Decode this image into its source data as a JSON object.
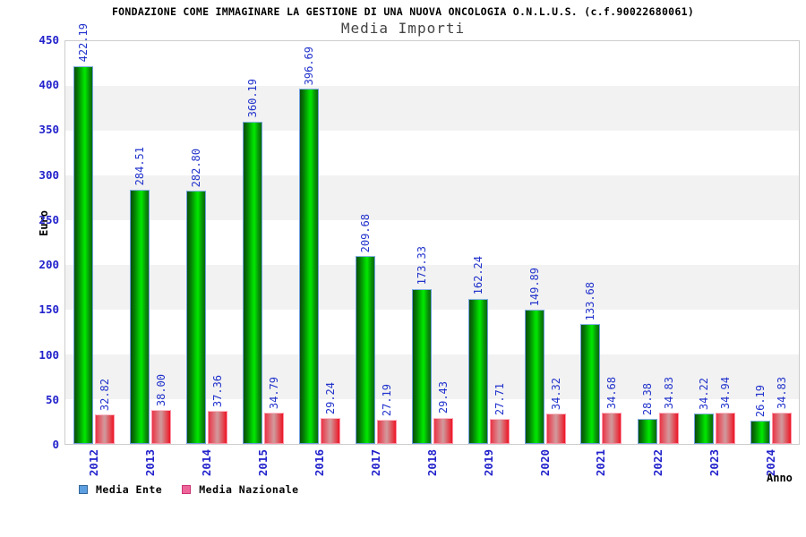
{
  "title": "FONDAZIONE COME IMMAGINARE LA GESTIONE DI UNA NUOVA ONCOLOGIA O.N.L.U.S. (c.f.90022680061)",
  "subtitle": "Media Importi",
  "axes": {
    "y_label": "Euro",
    "x_label": "Anno",
    "y_ticks": [
      0,
      50,
      100,
      150,
      200,
      250,
      300,
      350,
      400,
      450
    ],
    "y_max": 450
  },
  "legend": [
    {
      "label": "Media Ente",
      "swatch_fill": "#5c9fe0",
      "swatch_border": "#336699"
    },
    {
      "label": "Media Nazionale",
      "swatch_fill": "#ee6699",
      "swatch_border": "#cc3377"
    }
  ],
  "colors": {
    "tick_label": "#2222cc",
    "value_label": "#2233cc",
    "band": "#f2f2f2",
    "plot_border": "#cccccc",
    "bar_green_mid": "#00e800",
    "bar_red_mid": "#d98c92",
    "title_text": "#000000",
    "subtitle_text": "#444444"
  },
  "chart_data": {
    "type": "bar",
    "title": "Media Importi",
    "xlabel": "Anno",
    "ylabel": "Euro",
    "ylim": [
      0,
      450
    ],
    "grid": "alternating horizontal bands every 50 units",
    "legend_position": "bottom-left",
    "categories": [
      "2012",
      "2013",
      "2014",
      "2015",
      "2016",
      "2017",
      "2018",
      "2019",
      "2020",
      "2021",
      "2022",
      "2023",
      "2024"
    ],
    "series": [
      {
        "name": "Media Ente",
        "values": [
          422.19,
          284.51,
          282.8,
          360.19,
          396.69,
          209.68,
          173.33,
          162.24,
          149.89,
          133.68,
          28.38,
          34.22,
          26.19
        ]
      },
      {
        "name": "Media Nazionale",
        "values": [
          32.82,
          38.0,
          37.36,
          34.79,
          29.24,
          27.19,
          29.43,
          27.71,
          34.32,
          34.68,
          34.83,
          34.94,
          34.83
        ]
      }
    ]
  }
}
